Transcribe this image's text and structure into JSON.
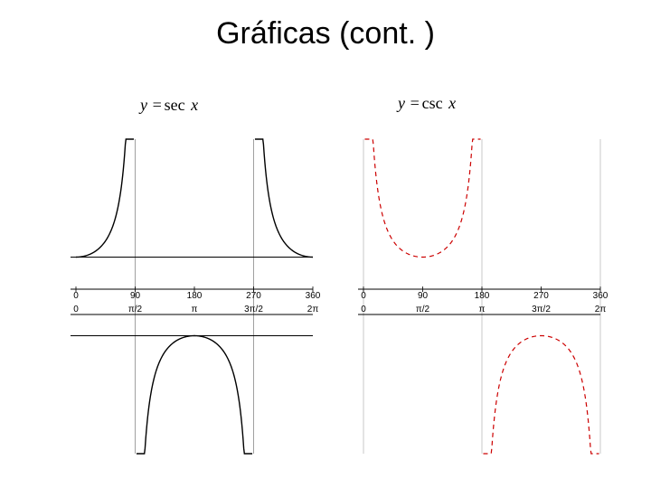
{
  "title": "Gráficas (cont. )",
  "left_chart": {
    "label_y": "y",
    "label_eq": " =",
    "label_fn": "sec",
    "label_x": " x",
    "type": "line",
    "stroke_color": "#000000",
    "stroke_width": 1.4,
    "xlim": [
      0,
      360
    ],
    "ylim": [
      -4,
      4
    ],
    "asymptotes_deg": [
      90,
      270
    ],
    "asymptote_color": "#888888",
    "ticks_deg": [
      0,
      90,
      180,
      270,
      360
    ],
    "tick_labels_top": [
      "0",
      "90",
      "180",
      "270",
      "360"
    ],
    "tick_labels_bot": [
      "0",
      "π/2",
      "π",
      "3π/2",
      "2π"
    ],
    "axis_color": "#000000",
    "grid_color": "#cccccc",
    "hline_y": [
      1,
      -1
    ],
    "background": "#ffffff",
    "tick_font_size": 10
  },
  "right_chart": {
    "label_y": "y",
    "label_eq": " =",
    "label_fn": "csc",
    "label_x": " x",
    "type": "line",
    "stroke_color": "#cc0000",
    "stroke_width": 1.2,
    "dash": "5,4",
    "xlim": [
      0,
      360
    ],
    "ylim": [
      -4,
      4
    ],
    "asymptotes_deg": [
      0,
      180,
      360
    ],
    "asymptote_color": "#bbbbbb",
    "ticks_deg": [
      0,
      90,
      180,
      270,
      360
    ],
    "tick_labels_top": [
      "0",
      "90",
      "180",
      "270",
      "360"
    ],
    "tick_labels_bot": [
      "0",
      "π/2",
      "π",
      "3π/2",
      "2π"
    ],
    "axis_color": "#000000",
    "background": "#ffffff",
    "tick_font_size": 10
  }
}
